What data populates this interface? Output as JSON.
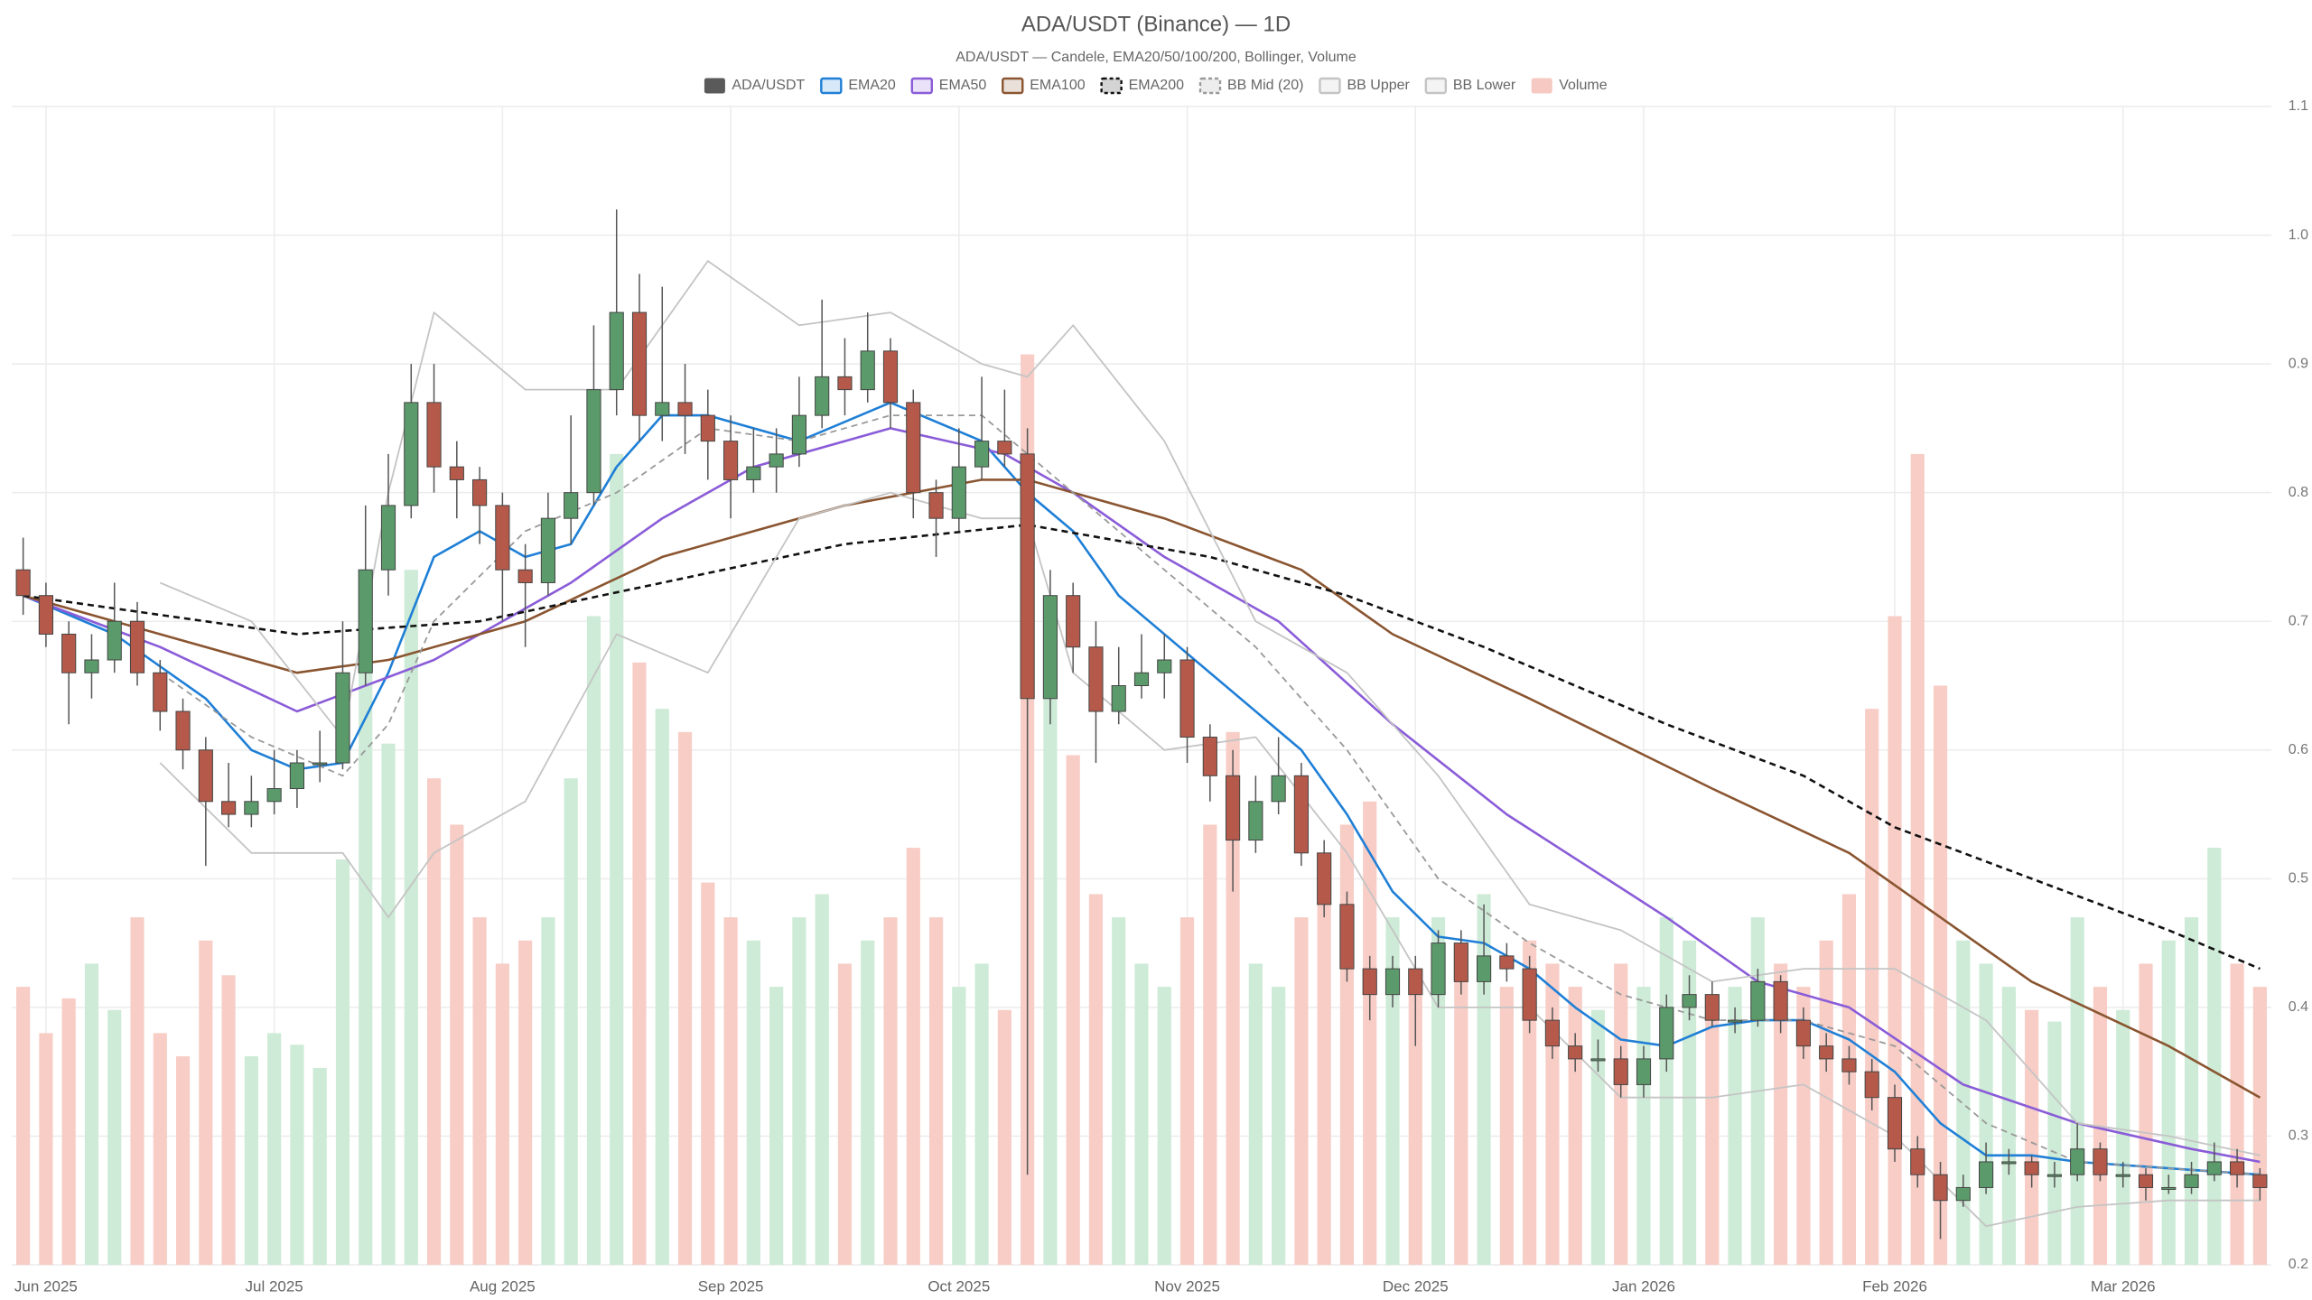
{
  "chart_data": {
    "type": "candlestick",
    "title": "ADA/USDT (Binance) — 1D",
    "subtitle": "ADA/USDT — Candele, EMA20/50/100/200, Bollinger, Volume",
    "categories": [
      null,
      "Jun 2025",
      null,
      null,
      null,
      null,
      null,
      null,
      null,
      null,
      null,
      "Jul 2025",
      null,
      null,
      null,
      null,
      null,
      null,
      null,
      null,
      null,
      "Aug 2025",
      null,
      null,
      null,
      null,
      null,
      null,
      null,
      null,
      null,
      "Sep 2025",
      null,
      null,
      null,
      null,
      null,
      null,
      null,
      null,
      null,
      "Oct 2025",
      null,
      null,
      null,
      null,
      null,
      null,
      null,
      null,
      null,
      "Nov 2025",
      null,
      null,
      null,
      null,
      null,
      null,
      null,
      null,
      null,
      "Dec 2025",
      null,
      null,
      null,
      null,
      null,
      null,
      null,
      null,
      null,
      "Jan 2026",
      null,
      null,
      null,
      null,
      null,
      null,
      null,
      null,
      null,
      null,
      "Feb 2026",
      null,
      null,
      null,
      null,
      null,
      null,
      null,
      null,
      null,
      "Mar 2026",
      null,
      null,
      null,
      null,
      null,
      null
    ],
    "ylim": [
      0.2,
      1.1
    ],
    "yticks": [
      0.2,
      0.3,
      0.4,
      0.5,
      0.6,
      0.7,
      0.8,
      0.9,
      {
        "value": 1,
        "label": "1.0"
      },
      1.1
    ],
    "y3lim": [
      0,
      1000
    ],
    "grid": true,
    "legend": "top",
    "series": [
      {
        "name": "ADA/USDT",
        "type": "candlestick",
        "color": "#5a5a5a",
        "up_color": "#5b9a6b",
        "down_color": "#b55a4a",
        "values": [
          [
            0.74,
            0.765,
            0.705,
            0.72
          ],
          [
            0.72,
            0.73,
            0.68,
            0.69
          ],
          [
            0.69,
            0.7,
            0.62,
            0.66
          ],
          [
            0.66,
            0.69,
            0.64,
            0.67
          ],
          [
            0.67,
            0.73,
            0.66,
            0.7
          ],
          [
            0.7,
            0.715,
            0.65,
            0.66
          ],
          [
            0.66,
            0.67,
            0.615,
            0.63
          ],
          [
            0.63,
            0.64,
            0.585,
            0.6
          ],
          [
            0.6,
            0.61,
            0.51,
            0.56
          ],
          [
            0.56,
            0.59,
            0.54,
            0.55
          ],
          [
            0.55,
            0.58,
            0.54,
            0.56
          ],
          [
            0.56,
            0.6,
            0.55,
            0.57
          ],
          [
            0.57,
            0.6,
            0.555,
            0.59
          ],
          [
            0.59,
            0.615,
            0.575,
            0.59
          ],
          [
            0.59,
            0.7,
            0.585,
            0.66
          ],
          [
            0.66,
            0.79,
            0.65,
            0.74
          ],
          [
            0.74,
            0.83,
            0.72,
            0.79
          ],
          [
            0.79,
            0.9,
            0.78,
            0.87
          ],
          [
            0.87,
            0.9,
            0.8,
            0.82
          ],
          [
            0.82,
            0.84,
            0.78,
            0.81
          ],
          [
            0.81,
            0.82,
            0.76,
            0.79
          ],
          [
            0.79,
            0.8,
            0.7,
            0.74
          ],
          [
            0.74,
            0.76,
            0.68,
            0.73
          ],
          [
            0.73,
            0.8,
            0.72,
            0.78
          ],
          [
            0.78,
            0.86,
            0.76,
            0.8
          ],
          [
            0.8,
            0.93,
            0.79,
            0.88
          ],
          [
            0.88,
            1.02,
            0.86,
            0.94
          ],
          [
            0.94,
            0.97,
            0.84,
            0.86
          ],
          [
            0.86,
            0.96,
            0.84,
            0.87
          ],
          [
            0.87,
            0.9,
            0.83,
            0.86
          ],
          [
            0.86,
            0.88,
            0.81,
            0.84
          ],
          [
            0.84,
            0.86,
            0.78,
            0.81
          ],
          [
            0.81,
            0.85,
            0.8,
            0.82
          ],
          [
            0.82,
            0.85,
            0.8,
            0.83
          ],
          [
            0.83,
            0.89,
            0.82,
            0.86
          ],
          [
            0.86,
            0.95,
            0.85,
            0.89
          ],
          [
            0.89,
            0.92,
            0.86,
            0.88
          ],
          [
            0.88,
            0.94,
            0.87,
            0.91
          ],
          [
            0.91,
            0.92,
            0.85,
            0.87
          ],
          [
            0.87,
            0.88,
            0.78,
            0.8
          ],
          [
            0.8,
            0.81,
            0.75,
            0.78
          ],
          [
            0.78,
            0.85,
            0.77,
            0.82
          ],
          [
            0.82,
            0.89,
            0.81,
            0.84
          ],
          [
            0.84,
            0.88,
            0.82,
            0.83
          ],
          [
            0.83,
            0.85,
            0.27,
            0.64
          ],
          [
            0.64,
            0.74,
            0.62,
            0.72
          ],
          [
            0.72,
            0.73,
            0.66,
            0.68
          ],
          [
            0.68,
            0.7,
            0.59,
            0.63
          ],
          [
            0.63,
            0.68,
            0.62,
            0.65
          ],
          [
            0.65,
            0.69,
            0.64,
            0.66
          ],
          [
            0.66,
            0.69,
            0.64,
            0.67
          ],
          [
            0.67,
            0.68,
            0.59,
            0.61
          ],
          [
            0.61,
            0.62,
            0.56,
            0.58
          ],
          [
            0.58,
            0.6,
            0.49,
            0.53
          ],
          [
            0.53,
            0.58,
            0.52,
            0.56
          ],
          [
            0.56,
            0.61,
            0.55,
            0.58
          ],
          [
            0.58,
            0.59,
            0.51,
            0.52
          ],
          [
            0.52,
            0.53,
            0.47,
            0.48
          ],
          [
            0.48,
            0.49,
            0.42,
            0.43
          ],
          [
            0.43,
            0.44,
            0.39,
            0.41
          ],
          [
            0.41,
            0.44,
            0.4,
            0.43
          ],
          [
            0.43,
            0.44,
            0.37,
            0.41
          ],
          [
            0.41,
            0.46,
            0.4,
            0.45
          ],
          [
            0.45,
            0.46,
            0.41,
            0.42
          ],
          [
            0.42,
            0.48,
            0.41,
            0.44
          ],
          [
            0.44,
            0.45,
            0.42,
            0.43
          ],
          [
            0.43,
            0.44,
            0.38,
            0.39
          ],
          [
            0.39,
            0.4,
            0.36,
            0.37
          ],
          [
            0.37,
            0.38,
            0.35,
            0.36
          ],
          [
            0.36,
            0.375,
            0.35,
            0.36
          ],
          [
            0.36,
            0.37,
            0.33,
            0.34
          ],
          [
            0.34,
            0.37,
            0.33,
            0.36
          ],
          [
            0.36,
            0.41,
            0.35,
            0.4
          ],
          [
            0.4,
            0.425,
            0.39,
            0.41
          ],
          [
            0.41,
            0.42,
            0.385,
            0.39
          ],
          [
            0.39,
            0.4,
            0.38,
            0.39
          ],
          [
            0.39,
            0.43,
            0.385,
            0.42
          ],
          [
            0.42,
            0.425,
            0.38,
            0.39
          ],
          [
            0.39,
            0.4,
            0.36,
            0.37
          ],
          [
            0.37,
            0.38,
            0.35,
            0.36
          ],
          [
            0.36,
            0.37,
            0.34,
            0.35
          ],
          [
            0.35,
            0.36,
            0.32,
            0.33
          ],
          [
            0.33,
            0.34,
            0.28,
            0.29
          ],
          [
            0.29,
            0.3,
            0.26,
            0.27
          ],
          [
            0.27,
            0.28,
            0.22,
            0.25
          ],
          [
            0.25,
            0.27,
            0.245,
            0.26
          ],
          [
            0.26,
            0.295,
            0.255,
            0.28
          ],
          [
            0.28,
            0.29,
            0.27,
            0.28
          ],
          [
            0.28,
            0.285,
            0.26,
            0.27
          ],
          [
            0.27,
            0.28,
            0.26,
            0.27
          ],
          [
            0.27,
            0.31,
            0.265,
            0.29
          ],
          [
            0.29,
            0.295,
            0.265,
            0.27
          ],
          [
            0.27,
            0.28,
            0.26,
            0.27
          ],
          [
            0.27,
            0.275,
            0.25,
            0.26
          ],
          [
            0.26,
            0.27,
            0.255,
            0.26
          ],
          [
            0.26,
            0.28,
            0.255,
            0.27
          ],
          [
            0.27,
            0.295,
            0.265,
            0.28
          ],
          [
            0.28,
            0.29,
            0.26,
            0.27
          ],
          [
            0.27,
            0.275,
            0.25,
            0.26
          ]
        ]
      },
      {
        "name": "EMA20",
        "type": "line",
        "color": "#1f7fd6",
        "x": [
          0,
          4,
          8,
          10,
          12,
          14,
          16,
          18,
          20,
          22,
          24,
          26,
          28,
          30,
          34,
          38,
          42,
          44,
          46,
          48,
          52,
          56,
          58,
          60,
          62,
          64,
          66,
          68,
          70,
          72,
          74,
          76,
          78,
          80,
          82,
          84,
          86,
          88,
          90,
          94,
          98
        ],
        "values": [
          0.72,
          0.69,
          0.64,
          0.6,
          0.585,
          0.59,
          0.66,
          0.75,
          0.77,
          0.75,
          0.76,
          0.82,
          0.86,
          0.86,
          0.84,
          0.87,
          0.84,
          0.8,
          0.77,
          0.72,
          0.66,
          0.6,
          0.55,
          0.49,
          0.455,
          0.45,
          0.43,
          0.4,
          0.375,
          0.37,
          0.385,
          0.39,
          0.39,
          0.375,
          0.35,
          0.31,
          0.285,
          0.285,
          0.28,
          0.275,
          0.27
        ]
      },
      {
        "name": "EMA50",
        "type": "line",
        "color": "#8a5cd8",
        "x": [
          0,
          6,
          12,
          18,
          24,
          28,
          32,
          38,
          43,
          46,
          50,
          55,
          60,
          65,
          72,
          76,
          80,
          85,
          90,
          95,
          98
        ],
        "values": [
          0.72,
          0.68,
          0.63,
          0.67,
          0.73,
          0.78,
          0.82,
          0.85,
          0.83,
          0.8,
          0.75,
          0.7,
          0.62,
          0.55,
          0.47,
          0.42,
          0.4,
          0.34,
          0.31,
          0.29,
          0.28
        ]
      },
      {
        "name": "EMA100",
        "type": "line",
        "color": "#8a5530",
        "x": [
          0,
          6,
          12,
          16,
          22,
          28,
          36,
          42,
          44,
          50,
          56,
          60,
          66,
          74,
          80,
          84,
          88,
          94,
          98
        ],
        "values": [
          0.72,
          0.69,
          0.66,
          0.67,
          0.7,
          0.75,
          0.79,
          0.81,
          0.81,
          0.78,
          0.74,
          0.69,
          0.64,
          0.57,
          0.52,
          0.47,
          0.42,
          0.37,
          0.33
        ]
      },
      {
        "name": "EMA200",
        "type": "line",
        "color": "#111111",
        "dashed": true,
        "x": [
          0,
          12,
          20,
          28,
          36,
          44,
          52,
          58,
          64,
          72,
          78,
          82,
          88,
          94,
          98
        ],
        "values": [
          0.72,
          0.69,
          0.7,
          0.73,
          0.76,
          0.775,
          0.75,
          0.72,
          0.68,
          0.62,
          0.58,
          0.54,
          0.5,
          0.46,
          0.43
        ]
      },
      {
        "name": "BB Mid (20)",
        "type": "line",
        "color": "#999999",
        "dashed": true,
        "x": [
          6,
          10,
          14,
          16,
          18,
          22,
          26,
          30,
          34,
          38,
          42,
          44,
          46,
          50,
          54,
          58,
          62,
          66,
          70,
          74,
          78,
          82,
          86,
          90,
          94,
          98
        ],
        "values": [
          0.66,
          0.61,
          0.58,
          0.62,
          0.7,
          0.77,
          0.8,
          0.85,
          0.84,
          0.86,
          0.86,
          0.83,
          0.8,
          0.74,
          0.68,
          0.6,
          0.5,
          0.45,
          0.41,
          0.39,
          0.39,
          0.37,
          0.31,
          0.28,
          0.275,
          0.27
        ]
      },
      {
        "name": "BB Upper",
        "type": "line",
        "color": "#c4c4c4",
        "x": [
          6,
          10,
          14,
          16,
          18,
          22,
          26,
          30,
          34,
          38,
          42,
          44,
          46,
          50,
          54,
          58,
          62,
          66,
          70,
          74,
          78,
          82,
          86,
          90,
          94,
          98
        ],
        "values": [
          0.73,
          0.7,
          0.61,
          0.8,
          0.94,
          0.88,
          0.88,
          0.98,
          0.93,
          0.94,
          0.9,
          0.89,
          0.93,
          0.84,
          0.7,
          0.66,
          0.58,
          0.48,
          0.46,
          0.42,
          0.43,
          0.43,
          0.39,
          0.31,
          0.3,
          0.285
        ]
      },
      {
        "name": "BB Lower",
        "type": "line",
        "color": "#c4c4c4",
        "x": [
          6,
          10,
          14,
          16,
          18,
          22,
          26,
          30,
          34,
          38,
          42,
          44,
          46,
          50,
          54,
          58,
          62,
          66,
          70,
          74,
          78,
          82,
          86,
          90,
          94,
          98
        ],
        "values": [
          0.59,
          0.52,
          0.52,
          0.47,
          0.52,
          0.56,
          0.69,
          0.66,
          0.78,
          0.8,
          0.78,
          0.78,
          0.66,
          0.6,
          0.61,
          0.52,
          0.4,
          0.4,
          0.33,
          0.33,
          0.34,
          0.3,
          0.23,
          0.245,
          0.25,
          0.25
        ]
      },
      {
        "name": "Volume",
        "type": "bar",
        "axis": "y3",
        "color": "#f6c9c2",
        "up_color": "#cdebd6",
        "down_color": "#f7cdc6",
        "values": [
          240,
          200,
          230,
          260,
          220,
          300,
          200,
          180,
          280,
          250,
          180,
          200,
          190,
          170,
          350,
          560,
          450,
          600,
          420,
          380,
          300,
          260,
          280,
          300,
          420,
          560,
          700,
          520,
          480,
          460,
          330,
          300,
          280,
          240,
          300,
          320,
          260,
          280,
          300,
          360,
          300,
          240,
          260,
          220,
          786,
          560,
          440,
          320,
          300,
          260,
          240,
          300,
          380,
          460,
          260,
          240,
          300,
          320,
          380,
          400,
          300,
          240,
          300,
          260,
          320,
          240,
          280,
          260,
          240,
          220,
          260,
          240,
          300,
          280,
          220,
          240,
          300,
          260,
          240,
          280,
          320,
          480,
          560,
          700,
          500,
          280,
          260,
          240,
          220,
          210,
          300,
          240,
          220,
          260,
          280,
          300,
          360,
          260,
          240
        ]
      }
    ]
  }
}
